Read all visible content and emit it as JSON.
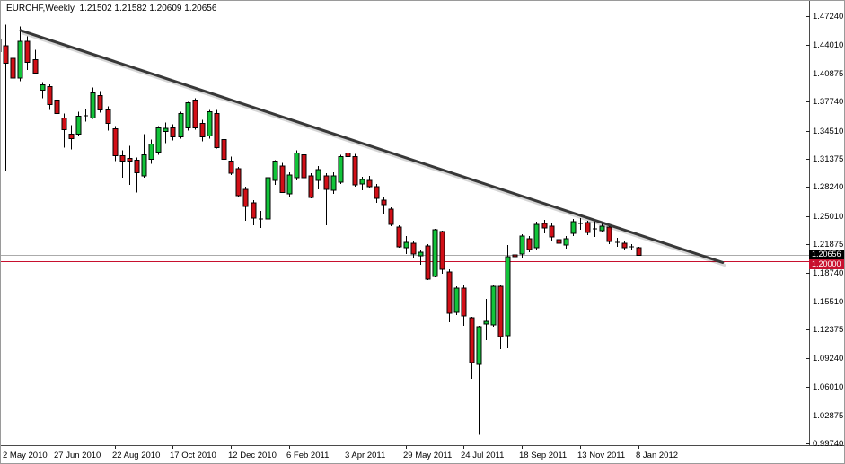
{
  "window_title": "EURCHF,Weekly  1.21502 1.21582 1.20609 1.20656",
  "chart_data": {
    "type": "candlestick",
    "symbol": "EURCHF",
    "timeframe": "Weekly",
    "last_bar": {
      "open": "1.21502",
      "high": "1.21582",
      "low": "1.20609",
      "close": "1.20656"
    },
    "y_axis": {
      "range_min": 0.9974,
      "range_max": 1.4724,
      "tick_labels": [
        "1.47240",
        "1.44010",
        "1.40875",
        "1.37740",
        "1.34510",
        "1.31375",
        "1.28240",
        "1.25010",
        "1.21875",
        "1.18740",
        "1.15510",
        "1.12375",
        "1.09240",
        "1.06010",
        "1.02875",
        "0.99740"
      ],
      "current_price_tag": "1.20656",
      "floor_line_tag": "1.20000"
    },
    "x_axis": {
      "tick_labels": [
        "2 May 2010",
        "27 Jun 2010",
        "22 Aug 2010",
        "17 Oct 2010",
        "12 Dec 2010",
        "6 Feb 2011",
        "3 Apr 2011",
        "29 May 2011",
        "24 Jul 2011",
        "18 Sep 2011",
        "13 Nov 2011",
        "8 Jan 2012"
      ],
      "ticks_every_n_bars": 8
    },
    "overlays": {
      "trendline": {
        "label": "descending-resistance-trendline",
        "i1": 3.1,
        "p1": 1.4565,
        "i2": 99.6,
        "p2": 1.1985,
        "color": "#383838",
        "width": 3
      },
      "floor_line": {
        "price": 1.2,
        "color": "#c8102e"
      },
      "current_price_line": {
        "price": 1.20656,
        "color": "#ababab"
      }
    },
    "colors": {
      "background": "#ffffff",
      "up_fill": "#12c43a",
      "down_fill": "#d20f17",
      "outline": "#000000",
      "axis_line": "#4a4a4a",
      "tag_black_bg": "#000000",
      "tag_red_bg": "#c8102e"
    },
    "candles": [
      {
        "date": "2 May 2010",
        "o": 1.446,
        "h": 1.448,
        "l": 1.427,
        "c": 1.433
      },
      {
        "date": "9 May 2010",
        "o": 1.4395,
        "h": 1.463,
        "l": 1.301,
        "c": 1.42
      },
      {
        "date": "16 May 2010",
        "o": 1.4255,
        "h": 1.4315,
        "l": 1.4,
        "c": 1.4035
      },
      {
        "date": "23 May 2010",
        "o": 1.4035,
        "h": 1.461,
        "l": 1.4,
        "c": 1.4445
      },
      {
        "date": "30 May 2010",
        "o": 1.4445,
        "h": 1.45,
        "l": 1.4125,
        "c": 1.421
      },
      {
        "date": "6 Jun 2010",
        "o": 1.424,
        "h": 1.435,
        "l": 1.408,
        "c": 1.409
      },
      {
        "date": "13 Jun 2010",
        "o": 1.39,
        "h": 1.399,
        "l": 1.381,
        "c": 1.396
      },
      {
        "date": "20 Jun 2010",
        "o": 1.394,
        "h": 1.3965,
        "l": 1.368,
        "c": 1.374
      },
      {
        "date": "27 Jun 2010",
        "o": 1.379,
        "h": 1.38,
        "l": 1.354,
        "c": 1.364
      },
      {
        "date": "4 Jul 2010",
        "o": 1.359,
        "h": 1.364,
        "l": 1.326,
        "c": 1.346
      },
      {
        "date": "11 Jul 2010",
        "o": 1.341,
        "h": 1.351,
        "l": 1.324,
        "c": 1.336
      },
      {
        "date": "18 Jul 2010",
        "o": 1.341,
        "h": 1.366,
        "l": 1.339,
        "c": 1.361
      },
      {
        "date": "25 Jul 2010",
        "o": 1.361,
        "h": 1.369,
        "l": 1.355,
        "c": 1.3615
      },
      {
        "date": "1 Aug 2010",
        "o": 1.359,
        "h": 1.393,
        "l": 1.358,
        "c": 1.387
      },
      {
        "date": "8 Aug 2010",
        "o": 1.384,
        "h": 1.389,
        "l": 1.365,
        "c": 1.368
      },
      {
        "date": "15 Aug 2010",
        "o": 1.368,
        "h": 1.372,
        "l": 1.345,
        "c": 1.353
      },
      {
        "date": "22 Aug 2010",
        "o": 1.347,
        "h": 1.35,
        "l": 1.311,
        "c": 1.317
      },
      {
        "date": "29 Aug 2010",
        "o": 1.317,
        "h": 1.323,
        "l": 1.293,
        "c": 1.311
      },
      {
        "date": "5 Sep 2010",
        "o": 1.314,
        "h": 1.328,
        "l": 1.285,
        "c": 1.311
      },
      {
        "date": "12 Sep 2010",
        "o": 1.312,
        "h": 1.315,
        "l": 1.2765,
        "c": 1.2985
      },
      {
        "date": "19 Sep 2010",
        "o": 1.295,
        "h": 1.341,
        "l": 1.293,
        "c": 1.318
      },
      {
        "date": "26 Sep 2010",
        "o": 1.313,
        "h": 1.335,
        "l": 1.308,
        "c": 1.33
      },
      {
        "date": "3 Oct 2010",
        "o": 1.321,
        "h": 1.35,
        "l": 1.318,
        "c": 1.348
      },
      {
        "date": "10 Oct 2010",
        "o": 1.344,
        "h": 1.354,
        "l": 1.331,
        "c": 1.3475
      },
      {
        "date": "17 Oct 2010",
        "o": 1.348,
        "h": 1.352,
        "l": 1.334,
        "c": 1.338
      },
      {
        "date": "24 Oct 2010",
        "o": 1.338,
        "h": 1.366,
        "l": 1.336,
        "c": 1.364
      },
      {
        "date": "31 Oct 2010",
        "o": 1.348,
        "h": 1.377,
        "l": 1.345,
        "c": 1.376
      },
      {
        "date": "7 Nov 2010",
        "o": 1.379,
        "h": 1.381,
        "l": 1.346,
        "c": 1.348
      },
      {
        "date": "14 Nov 2010",
        "o": 1.353,
        "h": 1.357,
        "l": 1.333,
        "c": 1.338
      },
      {
        "date": "21 Nov 2010",
        "o": 1.339,
        "h": 1.368,
        "l": 1.336,
        "c": 1.366
      },
      {
        "date": "28 Nov 2010",
        "o": 1.364,
        "h": 1.368,
        "l": 1.325,
        "c": 1.326
      },
      {
        "date": "5 Dec 2010",
        "o": 1.335,
        "h": 1.337,
        "l": 1.31,
        "c": 1.313
      },
      {
        "date": "12 Dec 2010",
        "o": 1.311,
        "h": 1.316,
        "l": 1.296,
        "c": 1.298
      },
      {
        "date": "19 Dec 2010",
        "o": 1.303,
        "h": 1.305,
        "l": 1.272,
        "c": 1.273
      },
      {
        "date": "26 Dec 2010",
        "o": 1.28,
        "h": 1.283,
        "l": 1.245,
        "c": 1.261
      },
      {
        "date": "2 Jan 2011",
        "o": 1.265,
        "h": 1.268,
        "l": 1.24,
        "c": 1.248
      },
      {
        "date": "9 Jan 2011",
        "o": 1.247,
        "h": 1.256,
        "l": 1.237,
        "c": 1.247
      },
      {
        "date": "16 Jan 2011",
        "o": 1.247,
        "h": 1.298,
        "l": 1.24,
        "c": 1.293
      },
      {
        "date": "23 Jan 2011",
        "o": 1.29,
        "h": 1.312,
        "l": 1.285,
        "c": 1.311
      },
      {
        "date": "30 Jan 2011",
        "o": 1.306,
        "h": 1.309,
        "l": 1.276,
        "c": 1.2765
      },
      {
        "date": "6 Feb 2011",
        "o": 1.275,
        "h": 1.299,
        "l": 1.271,
        "c": 1.296
      },
      {
        "date": "13 Feb 2011",
        "o": 1.293,
        "h": 1.323,
        "l": 1.29,
        "c": 1.32
      },
      {
        "date": "20 Feb 2011",
        "o": 1.318,
        "h": 1.322,
        "l": 1.292,
        "c": 1.293
      },
      {
        "date": "27 Feb 2011",
        "o": 1.295,
        "h": 1.298,
        "l": 1.27,
        "c": 1.271
      },
      {
        "date": "6 Mar 2011",
        "o": 1.29,
        "h": 1.306,
        "l": 1.28,
        "c": 1.302
      },
      {
        "date": "13 Mar 2011",
        "o": 1.295,
        "h": 1.298,
        "l": 1.24,
        "c": 1.28
      },
      {
        "date": "20 Mar 2011",
        "o": 1.279,
        "h": 1.299,
        "l": 1.275,
        "c": 1.295
      },
      {
        "date": "27 Mar 2011",
        "o": 1.288,
        "h": 1.318,
        "l": 1.286,
        "c": 1.316
      },
      {
        "date": "3 Apr 2011",
        "o": 1.32,
        "h": 1.326,
        "l": 1.306,
        "c": 1.316
      },
      {
        "date": "10 Apr 2011",
        "o": 1.316,
        "h": 1.319,
        "l": 1.283,
        "c": 1.285
      },
      {
        "date": "17 Apr 2011",
        "o": 1.286,
        "h": 1.294,
        "l": 1.279,
        "c": 1.291
      },
      {
        "date": "24 Apr 2011",
        "o": 1.29,
        "h": 1.295,
        "l": 1.282,
        "c": 1.283
      },
      {
        "date": "1 May 2011",
        "o": 1.283,
        "h": 1.286,
        "l": 1.265,
        "c": 1.27
      },
      {
        "date": "8 May 2011",
        "o": 1.268,
        "h": 1.272,
        "l": 1.252,
        "c": 1.263
      },
      {
        "date": "15 May 2011",
        "o": 1.258,
        "h": 1.26,
        "l": 1.239,
        "c": 1.241
      },
      {
        "date": "22 May 2011",
        "o": 1.238,
        "h": 1.24,
        "l": 1.215,
        "c": 1.216
      },
      {
        "date": "29 May 2011",
        "o": 1.215,
        "h": 1.228,
        "l": 1.208,
        "c": 1.221
      },
      {
        "date": "5 Jun 2011",
        "o": 1.22,
        "h": 1.223,
        "l": 1.204,
        "c": 1.208
      },
      {
        "date": "12 Jun 2011",
        "o": 1.206,
        "h": 1.213,
        "l": 1.196,
        "c": 1.21
      },
      {
        "date": "19 Jun 2011",
        "o": 1.217,
        "h": 1.219,
        "l": 1.179,
        "c": 1.18
      },
      {
        "date": "26 Jun 2011",
        "o": 1.183,
        "h": 1.236,
        "l": 1.182,
        "c": 1.235
      },
      {
        "date": "3 Jul 2011",
        "o": 1.233,
        "h": 1.234,
        "l": 1.186,
        "c": 1.191
      },
      {
        "date": "10 Jul 2011",
        "o": 1.188,
        "h": 1.191,
        "l": 1.132,
        "c": 1.142
      },
      {
        "date": "17 Jul 2011",
        "o": 1.143,
        "h": 1.172,
        "l": 1.14,
        "c": 1.17
      },
      {
        "date": "24 Jul 2011",
        "o": 1.17,
        "h": 1.173,
        "l": 1.128,
        "c": 1.139
      },
      {
        "date": "31 Jul 2011",
        "o": 1.137,
        "h": 1.138,
        "l": 1.069,
        "c": 1.087
      },
      {
        "date": "7 Aug 2011",
        "o": 1.085,
        "h": 1.128,
        "l": 1.007,
        "c": 1.127
      },
      {
        "date": "14 Aug 2011",
        "o": 1.13,
        "h": 1.158,
        "l": 1.112,
        "c": 1.133
      },
      {
        "date": "21 Aug 2011",
        "o": 1.129,
        "h": 1.174,
        "l": 1.127,
        "c": 1.172
      },
      {
        "date": "28 Aug 2011",
        "o": 1.172,
        "h": 1.174,
        "l": 1.102,
        "c": 1.116
      },
      {
        "date": "4 Sep 2011",
        "o": 1.117,
        "h": 1.218,
        "l": 1.103,
        "c": 1.205
      },
      {
        "date": "11 Sep 2011",
        "o": 1.207,
        "h": 1.212,
        "l": 1.199,
        "c": 1.205
      },
      {
        "date": "18 Sep 2011",
        "o": 1.208,
        "h": 1.23,
        "l": 1.203,
        "c": 1.228
      },
      {
        "date": "25 Sep 2011",
        "o": 1.225,
        "h": 1.228,
        "l": 1.21,
        "c": 1.213
      },
      {
        "date": "2 Oct 2011",
        "o": 1.215,
        "h": 1.244,
        "l": 1.212,
        "c": 1.241
      },
      {
        "date": "9 Oct 2011",
        "o": 1.242,
        "h": 1.246,
        "l": 1.231,
        "c": 1.237
      },
      {
        "date": "16 Oct 2011",
        "o": 1.239,
        "h": 1.243,
        "l": 1.223,
        "c": 1.227
      },
      {
        "date": "23 Oct 2011",
        "o": 1.224,
        "h": 1.229,
        "l": 1.215,
        "c": 1.22
      },
      {
        "date": "30 Oct 2011",
        "o": 1.218,
        "h": 1.228,
        "l": 1.214,
        "c": 1.225
      },
      {
        "date": "6 Nov 2011",
        "o": 1.231,
        "h": 1.247,
        "l": 1.228,
        "c": 1.244
      },
      {
        "date": "13 Nov 2011",
        "o": 1.242,
        "h": 1.248,
        "l": 1.235,
        "c": 1.242
      },
      {
        "date": "20 Nov 2011",
        "o": 1.243,
        "h": 1.245,
        "l": 1.229,
        "c": 1.232
      },
      {
        "date": "27 Nov 2011",
        "o": 1.236,
        "h": 1.245,
        "l": 1.227,
        "c": 1.236
      },
      {
        "date": "4 Dec 2011",
        "o": 1.234,
        "h": 1.244,
        "l": 1.232,
        "c": 1.239
      },
      {
        "date": "11 Dec 2011",
        "o": 1.238,
        "h": 1.24,
        "l": 1.219,
        "c": 1.222
      },
      {
        "date": "18 Dec 2011",
        "o": 1.221,
        "h": 1.226,
        "l": 1.216,
        "c": 1.221
      },
      {
        "date": "25 Dec 2011",
        "o": 1.22,
        "h": 1.223,
        "l": 1.213,
        "c": 1.215
      },
      {
        "date": "1 Jan 2012",
        "o": 1.216,
        "h": 1.219,
        "l": 1.213,
        "c": 1.2155
      },
      {
        "date": "8 Jan 2012",
        "o": 1.21502,
        "h": 1.21582,
        "l": 1.20609,
        "c": 1.20656
      }
    ]
  }
}
